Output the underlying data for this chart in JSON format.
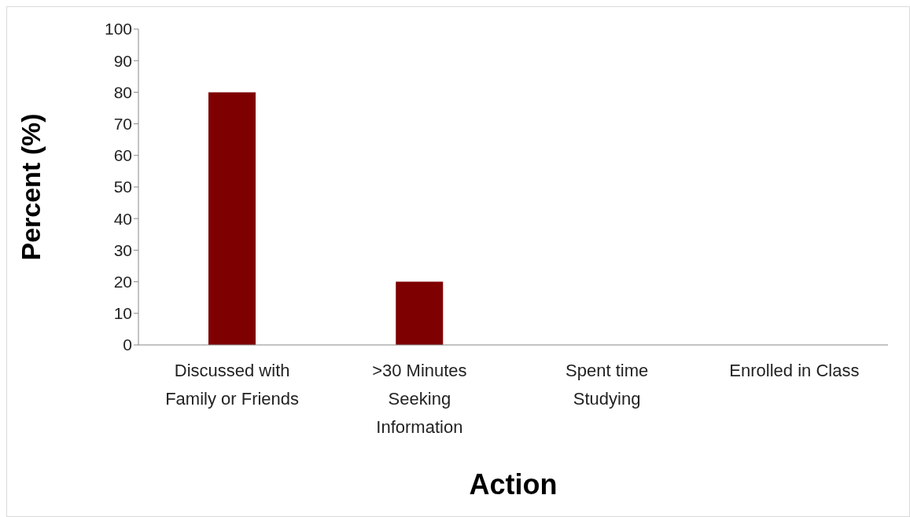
{
  "chart_data": {
    "type": "bar",
    "categories": [
      "Discussed with Family or Friends",
      ">30 Minutes Seeking Information",
      "Spent time Studying",
      "Enrolled in Class"
    ],
    "values": [
      80,
      20,
      0,
      0
    ],
    "color": "#7f0000",
    "xlabel": "Action",
    "ylabel": "Percent (%)",
    "ylim": [
      0,
      100
    ],
    "yticks": [
      0,
      10,
      20,
      30,
      40,
      50,
      60,
      70,
      80,
      90,
      100
    ],
    "grid": false,
    "legend": false
  }
}
